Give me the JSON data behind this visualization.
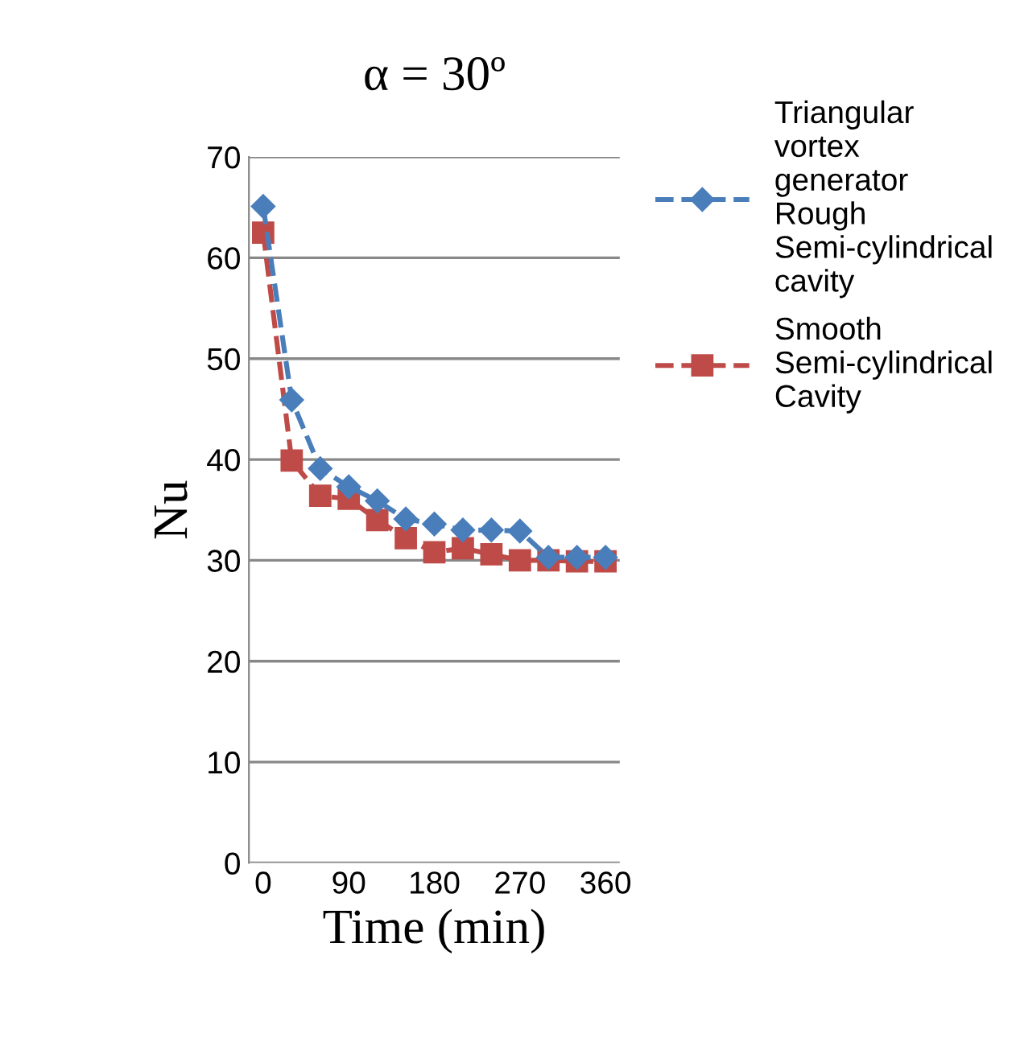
{
  "chart_data": {
    "type": "line",
    "title": "α = 30º",
    "xlabel": "Time (min)",
    "ylabel": "Nu",
    "categories": [
      "0",
      null,
      null,
      "90",
      null,
      null,
      "180",
      null,
      null,
      "270",
      null,
      null,
      "360"
    ],
    "series": [
      {
        "name": "Triangular vortex generator Rough Semi-cylindrical cavity",
        "color": "#4a7ebb",
        "marker": "diamond",
        "values": [
          65.1,
          45.9,
          39.1,
          37.3,
          35.9,
          34.1,
          33.6,
          33.0,
          33.0,
          32.9,
          30.3,
          30.3,
          30.3
        ]
      },
      {
        "name": "Smooth Semi-cylindrical Cavity",
        "color": "#be4b48",
        "marker": "square",
        "values": [
          62.5,
          39.9,
          36.4,
          36.1,
          34.0,
          32.2,
          30.8,
          31.2,
          30.6,
          30.0,
          30.0,
          29.9,
          29.9
        ]
      }
    ],
    "line_style": "dashed",
    "ylim": [
      0,
      70
    ],
    "yticks": [
      0,
      10,
      20,
      30,
      40,
      50,
      60,
      70
    ],
    "grid": "y",
    "legend": "right"
  }
}
